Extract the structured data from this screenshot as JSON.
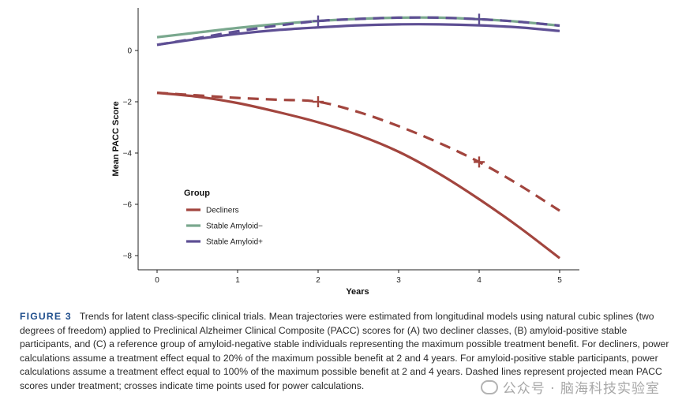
{
  "chart_data": {
    "type": "line",
    "xlabel": "Years",
    "ylabel": "Mean PACC Score",
    "xlim": [
      -0.5,
      5.5
    ],
    "ylim": [
      -8.6,
      1.7
    ],
    "x_ticks": [
      0,
      1,
      2,
      3,
      4,
      5
    ],
    "y_ticks": [
      0,
      -2,
      -4,
      -6,
      -8
    ],
    "y_tick_labels": [
      "0",
      "−2",
      "−4",
      "−6",
      "−8"
    ],
    "grid": false,
    "legend": {
      "title": "Group",
      "placement": "lower-left",
      "entries": [
        "Decliners",
        "Stable Amyloid−",
        "Stable Amyloid+"
      ]
    },
    "series": [
      {
        "name": "Decliners",
        "style": "solid",
        "color": "#a2453e",
        "x": [
          0,
          0.5,
          1,
          1.5,
          2,
          2.5,
          3,
          3.5,
          4,
          4.5,
          5
        ],
        "values": [
          -1.65,
          -1.8,
          -2.05,
          -2.4,
          -2.8,
          -3.3,
          -3.95,
          -4.8,
          -5.8,
          -6.9,
          -8.1
        ]
      },
      {
        "name": "Decliners (treated)",
        "style": "dashed",
        "color": "#a2453e",
        "x": [
          0,
          0.5,
          1,
          1.5,
          2,
          2.5,
          3,
          3.5,
          4,
          4.5,
          5
        ],
        "values": [
          -1.65,
          -1.75,
          -1.85,
          -1.92,
          -2.0,
          -2.4,
          -2.95,
          -3.6,
          -4.35,
          -5.25,
          -6.25
        ]
      },
      {
        "name": "Stable Amyloid−",
        "style": "solid",
        "color": "#7aa88e",
        "x": [
          0,
          0.5,
          1,
          1.5,
          2,
          2.5,
          3,
          3.5,
          4,
          4.5,
          5
        ],
        "values": [
          0.52,
          0.7,
          0.88,
          1.03,
          1.15,
          1.23,
          1.28,
          1.28,
          1.22,
          1.12,
          0.97
        ]
      },
      {
        "name": "Stable Amyloid+",
        "style": "solid",
        "color": "#5e4f94",
        "x": [
          0,
          0.5,
          1,
          1.5,
          2,
          2.5,
          3,
          3.5,
          4,
          4.5,
          5
        ],
        "values": [
          0.22,
          0.45,
          0.65,
          0.8,
          0.9,
          0.98,
          1.02,
          1.02,
          0.98,
          0.9,
          0.76
        ]
      },
      {
        "name": "Stable Amyloid+ (treated)",
        "style": "dashed",
        "color": "#5e4f94",
        "x": [
          0,
          0.5,
          1,
          1.5,
          2,
          2.5,
          3,
          3.5,
          4,
          4.5,
          5
        ],
        "values": [
          0.22,
          0.48,
          0.75,
          0.97,
          1.15,
          1.23,
          1.28,
          1.28,
          1.22,
          1.12,
          0.97
        ]
      }
    ],
    "crosses": [
      {
        "x": 2,
        "y": -2.0,
        "color": "#a2453e"
      },
      {
        "x": 4,
        "y": -4.35,
        "color": "#a2453e"
      },
      {
        "x": 2,
        "y": 1.15,
        "color": "#5e4f94"
      },
      {
        "x": 4,
        "y": 1.22,
        "color": "#5e4f94"
      }
    ]
  },
  "caption": {
    "label": "FIGURE 3",
    "text": "Trends for latent class-specific clinical trials. Mean trajectories were estimated from longitudinal models using natural cubic splines (two degrees of freedom) applied to Preclinical Alzheimer Clinical Composite (PACC) scores for (A) two decliner classes, (B) amyloid-positive stable participants, and (C) a reference group of amyloid-negative stable individuals representing the maximum possible treatment benefit. For decliners, power calculations assume a treatment effect equal to 20% of the maximum possible benefit at 2 and 4 years. For amyloid-positive stable participants, power calculations assume a treatment effect equal to 100% of the maximum possible benefit at 2 and 4 years. Dashed lines represent projected mean PACC scores under treatment; crosses indicate time points used for power calculations."
  },
  "watermark": {
    "text": "公众号 · 脑海科技实验室"
  }
}
